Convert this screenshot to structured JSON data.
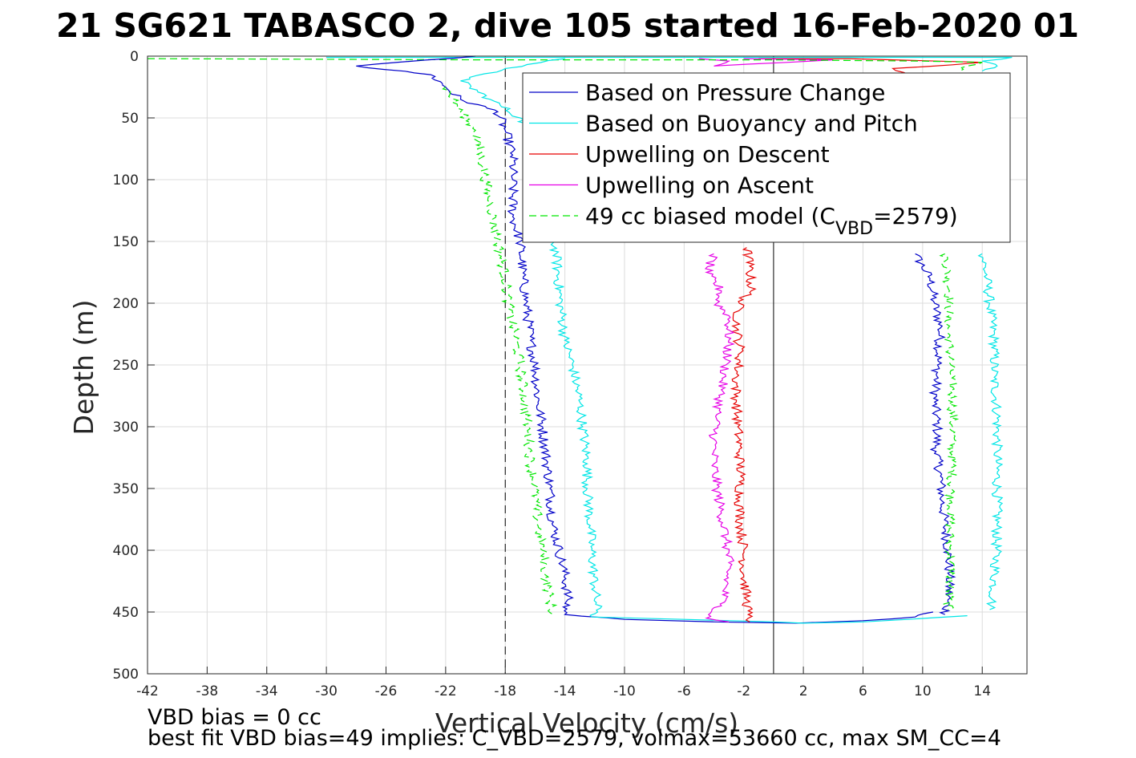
{
  "chart_data": {
    "type": "line",
    "title": "21 SG621 TABASCO 2, dive 105 started 16-Feb-2020 01",
    "xlabel": "Vertical Velocity (cm/s)",
    "ylabel": "Depth (m)",
    "xlim": [
      -42,
      17
    ],
    "ylim": [
      0,
      500
    ],
    "y_reversed": true,
    "grid": true,
    "legend_position": "top-right",
    "xticks": [
      -42,
      -38,
      -34,
      -30,
      -26,
      -22,
      -18,
      -14,
      -10,
      -6,
      -2,
      2,
      6,
      10,
      14
    ],
    "yticks": [
      0,
      50,
      100,
      150,
      200,
      250,
      300,
      350,
      400,
      450,
      500
    ],
    "reference_lines": [
      {
        "orientation": "vertical",
        "x": 0,
        "style": "solid",
        "color": "#000000"
      },
      {
        "orientation": "vertical",
        "x": -18.0,
        "style": "dashed",
        "color": "#000000"
      }
    ],
    "series": [
      {
        "name": "Based on Pressure Change",
        "color": "#0000c8",
        "style": "solid",
        "points": [
          [
            -20,
            0
          ],
          [
            -28,
            8
          ],
          [
            -23,
            15
          ],
          [
            -22,
            25
          ],
          [
            -21,
            35
          ],
          [
            -18.5,
            45
          ],
          [
            -18,
            60
          ],
          [
            -17.5,
            80
          ],
          [
            -17.5,
            100
          ],
          [
            -17.5,
            130
          ],
          [
            -17,
            150
          ],
          [
            -16.8,
            180
          ],
          [
            -16.6,
            200
          ],
          [
            -16.3,
            230
          ],
          [
            -16,
            250
          ],
          [
            -15.8,
            280
          ],
          [
            -15.5,
            300
          ],
          [
            -15.2,
            330
          ],
          [
            -15,
            350
          ],
          [
            -14.8,
            380
          ],
          [
            -14.4,
            400
          ],
          [
            -14,
            420
          ],
          [
            -13.8,
            440
          ],
          [
            -14,
            452
          ],
          [
            -10,
            456
          ],
          [
            -4,
            458
          ],
          [
            1.5,
            459
          ],
          [
            6,
            457
          ],
          [
            9.5,
            454
          ],
          [
            10.7,
            450
          ]
        ]
      },
      {
        "name": "Based on Buoyancy and Pitch",
        "color": "#00e6e6",
        "style": "solid",
        "points": [
          [
            -14,
            2
          ],
          [
            -18,
            10
          ],
          [
            -21,
            20
          ],
          [
            -19,
            35
          ],
          [
            -17,
            50
          ],
          [
            -16,
            70
          ],
          [
            -15.5,
            100
          ],
          [
            -15,
            130
          ],
          [
            -14.6,
            160
          ],
          [
            -14.3,
            200
          ],
          [
            -14,
            230
          ],
          [
            -13.5,
            250
          ],
          [
            -13,
            280
          ],
          [
            -12.8,
            300
          ],
          [
            -12.5,
            330
          ],
          [
            -12.5,
            350
          ],
          [
            -12.3,
            380
          ],
          [
            -12.2,
            400
          ],
          [
            -12,
            430
          ],
          [
            -11.8,
            450
          ],
          [
            -12.2,
            454
          ],
          [
            -6,
            456
          ],
          [
            0,
            458
          ],
          [
            2,
            459
          ],
          [
            6,
            458
          ],
          [
            9,
            456
          ],
          [
            13,
            453
          ]
        ]
      },
      {
        "name": "Upwelling on Descent",
        "color": "#e60000",
        "style": "solid",
        "points": [
          [
            -1.8,
            155
          ],
          [
            -1.6,
            170
          ],
          [
            -1.5,
            190
          ],
          [
            -2.3,
            200
          ],
          [
            -2.5,
            220
          ],
          [
            -2.2,
            240
          ],
          [
            -2.5,
            260
          ],
          [
            -2.5,
            280
          ],
          [
            -2.4,
            300
          ],
          [
            -2.3,
            320
          ],
          [
            -2.2,
            340
          ],
          [
            -2.3,
            360
          ],
          [
            -2.2,
            380
          ],
          [
            -2,
            400
          ],
          [
            -2,
            420
          ],
          [
            -1.8,
            440
          ],
          [
            -1.7,
            452
          ],
          [
            -1.6,
            458
          ]
        ]
      },
      {
        "name": "Upwelling on Ascent",
        "color": "#e600e6",
        "style": "solid",
        "points": [
          [
            -4,
            160
          ],
          [
            -4.5,
            175
          ],
          [
            -3.5,
            190
          ],
          [
            -3.8,
            200
          ],
          [
            -3,
            210
          ],
          [
            -3,
            230
          ],
          [
            -3.2,
            250
          ],
          [
            -3.5,
            270
          ],
          [
            -3.8,
            290
          ],
          [
            -4,
            310
          ],
          [
            -4,
            330
          ],
          [
            -3.8,
            350
          ],
          [
            -3.5,
            370
          ],
          [
            -3.2,
            390
          ],
          [
            -3,
            410
          ],
          [
            -3.2,
            430
          ],
          [
            -3.5,
            445
          ],
          [
            -4.5,
            455
          ],
          [
            -3,
            458
          ]
        ]
      },
      {
        "name": "49 cc biased model (C_VBD=2579)",
        "color": "#00e600",
        "style": "dashed",
        "points": [
          [
            -22,
            25
          ],
          [
            -21,
            45
          ],
          [
            -20,
            60
          ],
          [
            -19.5,
            90
          ],
          [
            -19,
            120
          ],
          [
            -18.5,
            150
          ],
          [
            -18,
            180
          ],
          [
            -17.8,
            200
          ],
          [
            -17.3,
            230
          ],
          [
            -17,
            250
          ],
          [
            -16.7,
            280
          ],
          [
            -16.5,
            300
          ],
          [
            -16.3,
            330
          ],
          [
            -16,
            350
          ],
          [
            -15.8,
            380
          ],
          [
            -15.5,
            400
          ],
          [
            -15.3,
            420
          ],
          [
            -15,
            440
          ],
          [
            -14.8,
            452
          ]
        ]
      }
    ],
    "right_traces": [
      {
        "color": "#0000c8",
        "style": "solid",
        "points": [
          [
            9.5,
            160
          ],
          [
            10.5,
            180
          ],
          [
            10.8,
            200
          ],
          [
            11.2,
            220
          ],
          [
            11,
            250
          ],
          [
            10.8,
            280
          ],
          [
            11,
            300
          ],
          [
            10.9,
            320
          ],
          [
            11.2,
            340
          ],
          [
            11.3,
            360
          ],
          [
            11.5,
            380
          ],
          [
            11.7,
            400
          ],
          [
            11.8,
            420
          ],
          [
            11.7,
            440
          ],
          [
            11.5,
            452
          ]
        ]
      },
      {
        "color": "#00e6e6",
        "style": "solid",
        "points": [
          [
            14,
            160
          ],
          [
            14.3,
            180
          ],
          [
            14.5,
            200
          ],
          [
            14.8,
            230
          ],
          [
            14.8,
            260
          ],
          [
            15,
            290
          ],
          [
            15,
            320
          ],
          [
            15,
            350
          ],
          [
            15,
            380
          ],
          [
            14.9,
            410
          ],
          [
            14.7,
            440
          ],
          [
            14.5,
            448
          ]
        ]
      },
      {
        "color": "#00e600",
        "style": "dashed",
        "points": [
          [
            11.5,
            160
          ],
          [
            11.8,
            190
          ],
          [
            11.7,
            220
          ],
          [
            11.9,
            250
          ],
          [
            12,
            280
          ],
          [
            12,
            300
          ],
          [
            12,
            330
          ],
          [
            11.9,
            360
          ],
          [
            11.8,
            390
          ],
          [
            11.9,
            420
          ],
          [
            11.7,
            448
          ]
        ]
      }
    ],
    "surface_traces": [
      {
        "color": "#e60000",
        "style": "solid",
        "points": [
          [
            -1,
            2
          ],
          [
            5,
            2
          ],
          [
            8,
            3
          ],
          [
            11,
            4
          ],
          [
            14,
            5
          ],
          [
            12,
            7
          ],
          [
            8,
            10
          ],
          [
            9,
            15
          ],
          [
            12,
            18
          ]
        ]
      },
      {
        "color": "#e600e6",
        "style": "solid",
        "points": [
          [
            -5,
            2
          ],
          [
            -3,
            4
          ],
          [
            -4,
            8
          ],
          [
            1,
            5
          ],
          [
            4,
            3
          ],
          [
            -2,
            2
          ]
        ]
      },
      {
        "color": "#00e6e6",
        "style": "solid",
        "points": [
          [
            -30,
            1
          ],
          [
            -10,
            1
          ],
          [
            0,
            1
          ],
          [
            10,
            1
          ],
          [
            16,
            1
          ],
          [
            14,
            4
          ],
          [
            15,
            8
          ],
          [
            14,
            12
          ]
        ]
      },
      {
        "color": "#00e600",
        "style": "dashed",
        "points": [
          [
            -42,
            2
          ],
          [
            -20,
            3
          ],
          [
            0,
            3
          ],
          [
            10,
            4
          ],
          [
            14,
            5
          ],
          [
            13,
            8
          ],
          [
            12.5,
            12
          ],
          [
            13,
            16
          ]
        ]
      }
    ],
    "legend_entries": [
      {
        "prefix": "Based on Pressure Change",
        "sub": "",
        "suffix": ""
      },
      {
        "prefix": "Based on Buoyancy and Pitch",
        "sub": "",
        "suffix": ""
      },
      {
        "prefix": "Upwelling on Descent",
        "sub": "",
        "suffix": ""
      },
      {
        "prefix": "Upwelling on Ascent",
        "sub": "",
        "suffix": ""
      },
      {
        "prefix": "49 cc biased model (C",
        "sub": "VBD",
        "suffix": "=2579)"
      }
    ],
    "annotations": [
      "VBD bias = 0 cc",
      "best fit VBD bias=49 implies: C_VBD=2579, volmax=53660 cc, max SM_CC=4"
    ]
  }
}
